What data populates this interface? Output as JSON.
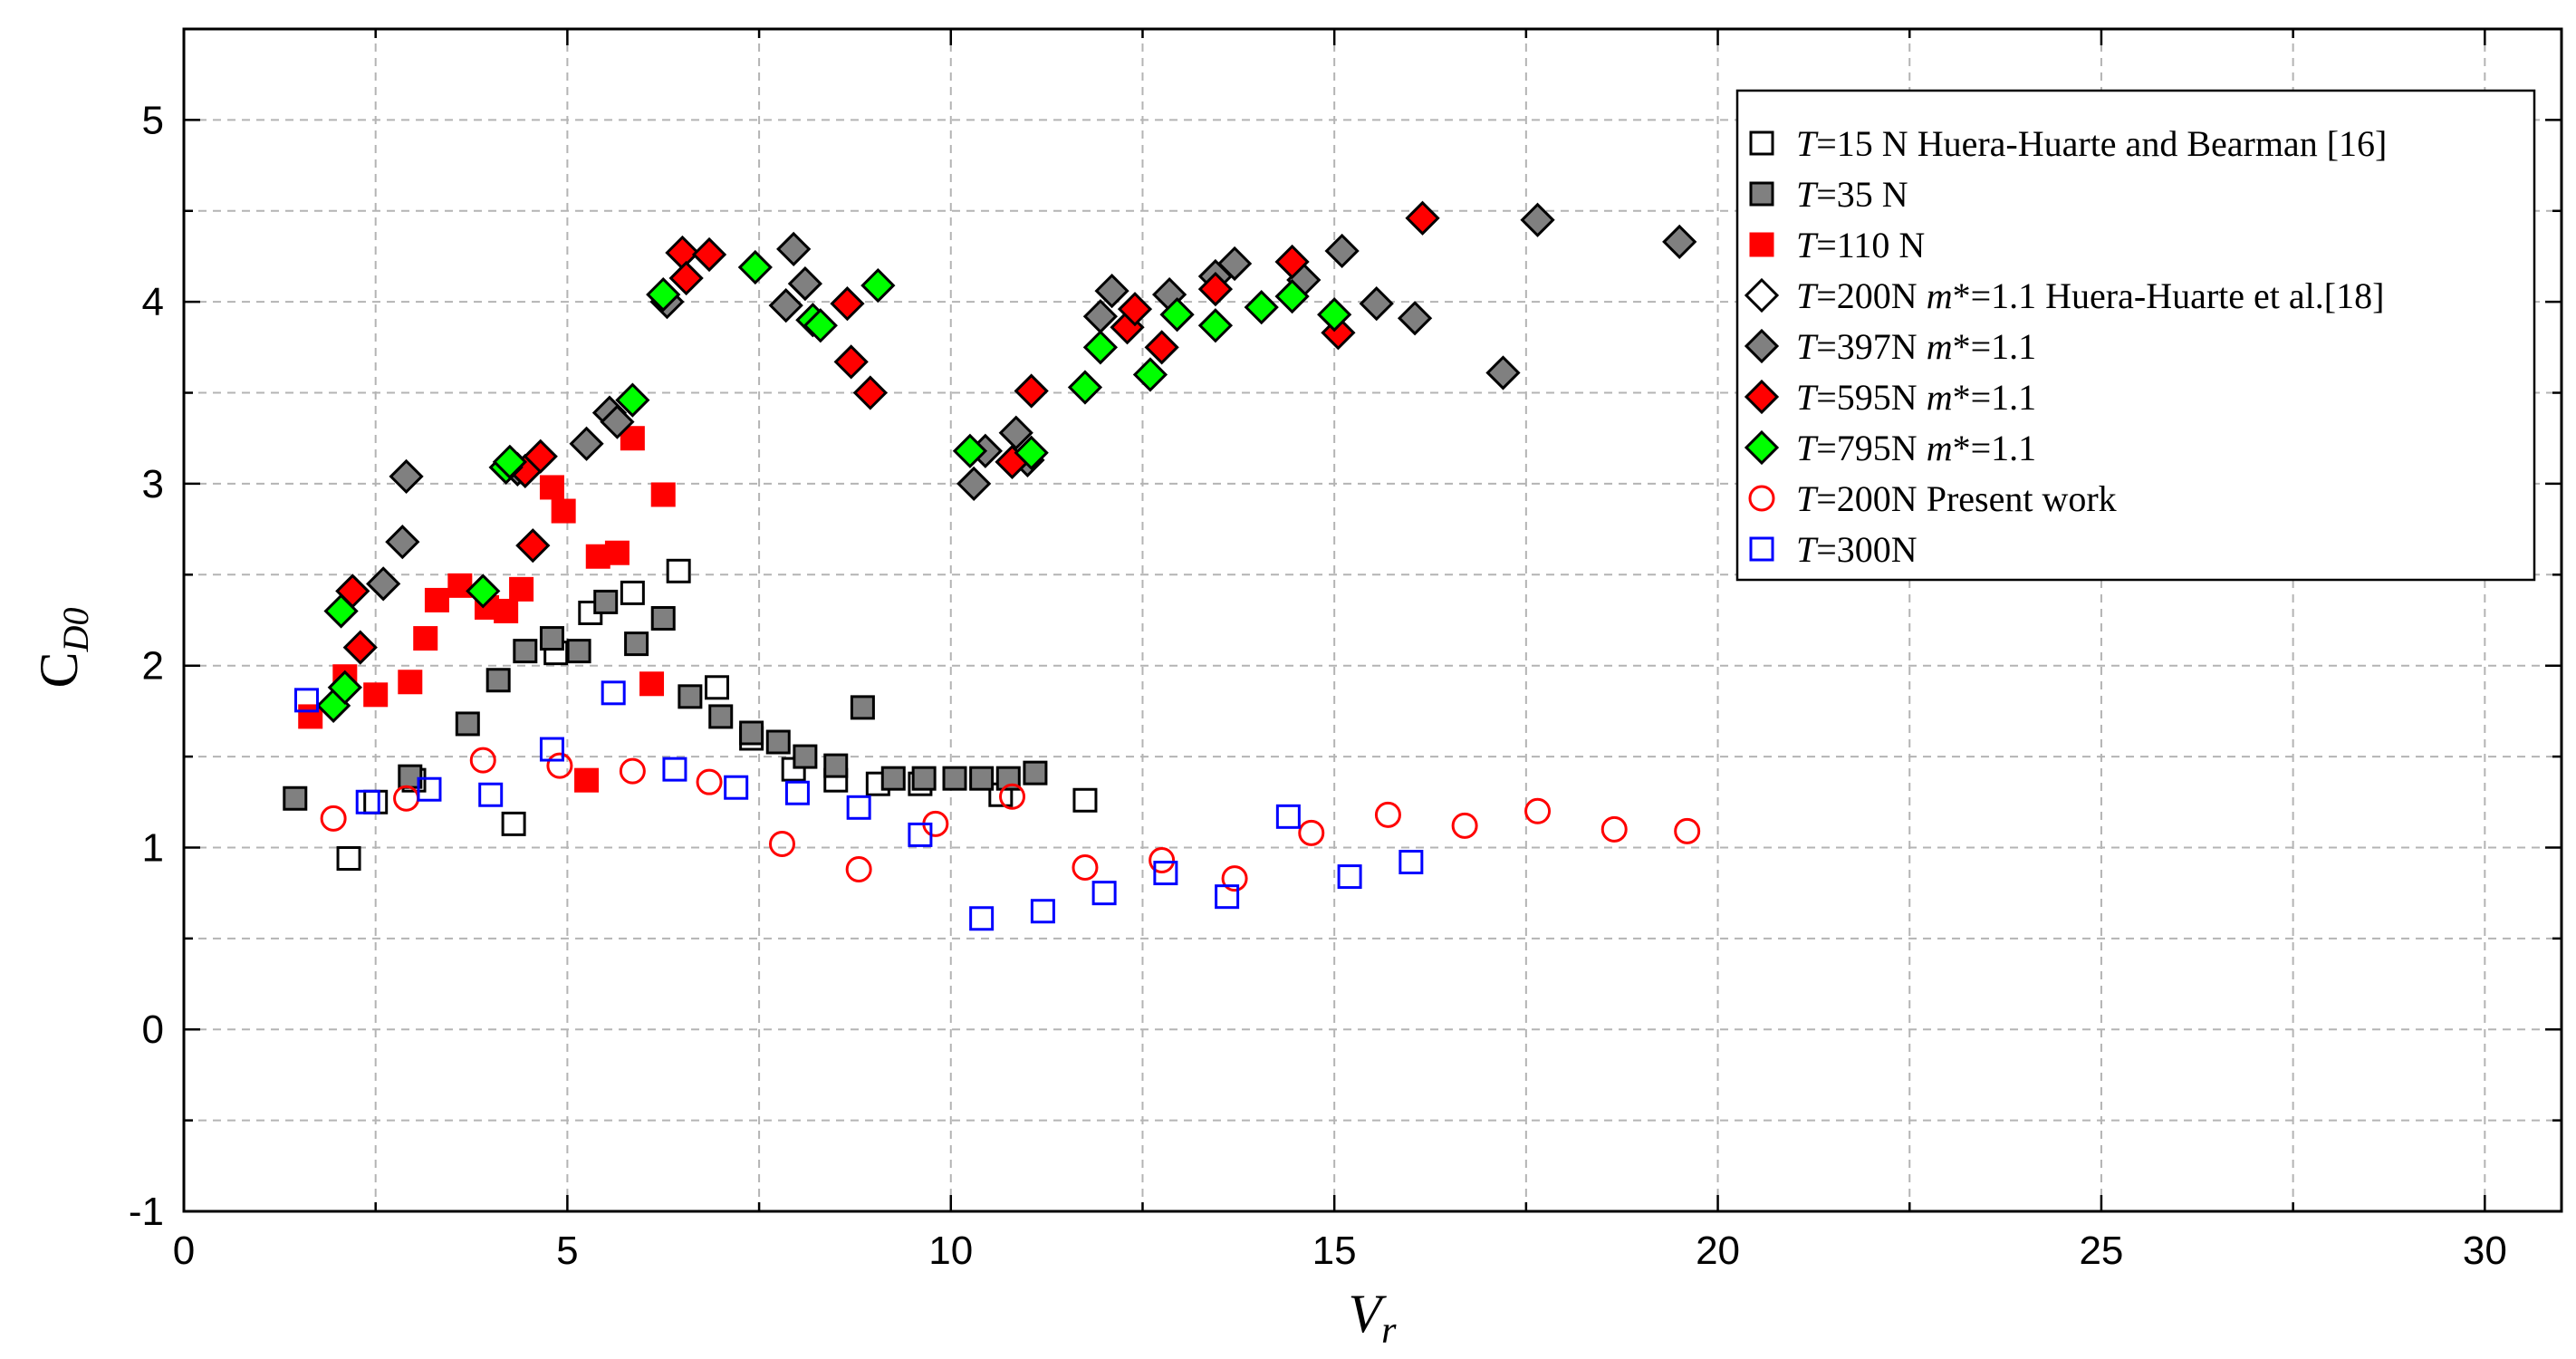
{
  "chart_data": {
    "type": "scatter",
    "title": "",
    "xlabel": "V_r",
    "xlabel_main": "V",
    "xlabel_sub": "r",
    "ylabel": "C_D0",
    "ylabel_main": "C",
    "ylabel_sub": "D0",
    "xlim": [
      0,
      31
    ],
    "ylim": [
      -1,
      5.5
    ],
    "xticks": [
      0,
      5,
      10,
      15,
      20,
      25,
      30
    ],
    "xtick_labels": [
      "0",
      "5",
      "10",
      "15",
      "20",
      "25",
      "30"
    ],
    "yticks": [
      -1,
      0,
      1,
      2,
      3,
      4,
      5
    ],
    "ytick_labels": [
      "-1",
      "0",
      "1",
      "2",
      "3",
      "4",
      "5"
    ],
    "grid": true,
    "legend_position": "top-right",
    "series": [
      {
        "name": "T=15 N Huera-Huarte and Bearman [16]",
        "legend_parts": [
          [
            "T",
            true
          ],
          [
            "=15 N Huera-Huarte and Bearman [16]",
            false
          ]
        ],
        "marker": "square",
        "fill": "#ffffff",
        "stroke": "#000000",
        "points": [
          [
            2.15,
            0.94
          ],
          [
            2.5,
            1.25
          ],
          [
            3.0,
            1.37
          ],
          [
            4.3,
            1.13
          ],
          [
            4.85,
            2.07
          ],
          [
            5.3,
            2.29
          ],
          [
            5.85,
            2.4
          ],
          [
            6.45,
            2.52
          ],
          [
            6.95,
            1.88
          ],
          [
            7.4,
            1.6
          ],
          [
            7.95,
            1.43
          ],
          [
            8.5,
            1.37
          ],
          [
            9.05,
            1.35
          ],
          [
            9.6,
            1.35
          ],
          [
            10.65,
            1.29
          ],
          [
            11.75,
            1.26
          ]
        ]
      },
      {
        "name": "T=35 N",
        "legend_parts": [
          [
            "T",
            true
          ],
          [
            "=35 N",
            false
          ]
        ],
        "marker": "square",
        "fill": "#808080",
        "stroke": "#000000",
        "points": [
          [
            1.45,
            1.27
          ],
          [
            2.95,
            1.39
          ],
          [
            3.7,
            1.68
          ],
          [
            4.1,
            1.92
          ],
          [
            4.45,
            2.08
          ],
          [
            4.8,
            2.15
          ],
          [
            5.15,
            2.08
          ],
          [
            5.5,
            2.35
          ],
          [
            5.9,
            2.12
          ],
          [
            6.25,
            2.26
          ],
          [
            6.6,
            1.83
          ],
          [
            7.0,
            1.72
          ],
          [
            7.4,
            1.63
          ],
          [
            7.75,
            1.58
          ],
          [
            8.1,
            1.5
          ],
          [
            8.5,
            1.45
          ],
          [
            8.85,
            1.77
          ],
          [
            9.25,
            1.38
          ],
          [
            9.65,
            1.38
          ],
          [
            10.05,
            1.38
          ],
          [
            10.4,
            1.38
          ],
          [
            10.75,
            1.38
          ],
          [
            11.1,
            1.41
          ]
        ]
      },
      {
        "name": "T=110 N",
        "legend_parts": [
          [
            "T",
            true
          ],
          [
            "=110 N",
            false
          ]
        ],
        "marker": "square",
        "fill": "#ff0000",
        "stroke": "#ff0000",
        "points": [
          [
            1.65,
            1.72
          ],
          [
            2.1,
            1.94
          ],
          [
            2.5,
            1.84
          ],
          [
            2.95,
            1.91
          ],
          [
            3.15,
            2.15
          ],
          [
            3.3,
            2.36
          ],
          [
            3.6,
            2.44
          ],
          [
            3.95,
            2.32
          ],
          [
            4.2,
            2.3
          ],
          [
            4.4,
            2.42
          ],
          [
            4.8,
            2.98
          ],
          [
            4.95,
            2.85
          ],
          [
            5.25,
            1.37
          ],
          [
            5.4,
            2.6
          ],
          [
            5.65,
            2.62
          ],
          [
            5.85,
            3.25
          ],
          [
            6.1,
            1.9
          ],
          [
            6.25,
            2.94
          ]
        ]
      },
      {
        "name": "T=200N m*=1.1 Huera-Huarte et al.[18]",
        "legend_parts": [
          [
            "T",
            true
          ],
          [
            "=200N ",
            false
          ],
          [
            "m",
            true
          ],
          [
            "*=1.1 Huera-Huarte et al.[18]",
            false
          ]
        ],
        "marker": "diamond",
        "fill": "#ffffff",
        "stroke": "#000000",
        "points": []
      },
      {
        "name": "T=397N m*=1.1",
        "legend_parts": [
          [
            "T",
            true
          ],
          [
            "=397N ",
            false
          ],
          [
            "m",
            true
          ],
          [
            "*=1.1",
            false
          ]
        ],
        "marker": "diamond",
        "fill": "#808080",
        "stroke": "#000000",
        "points": [
          [
            2.6,
            2.45
          ],
          [
            2.85,
            2.68
          ],
          [
            2.9,
            3.04
          ],
          [
            4.35,
            3.08
          ],
          [
            5.25,
            3.22
          ],
          [
            5.55,
            3.39
          ],
          [
            5.65,
            3.34
          ],
          [
            6.3,
            4.0
          ],
          [
            7.85,
            3.98
          ],
          [
            7.95,
            4.29
          ],
          [
            8.1,
            4.1
          ],
          [
            10.3,
            3.0
          ],
          [
            10.45,
            3.18
          ],
          [
            10.85,
            3.28
          ],
          [
            11.0,
            3.13
          ],
          [
            11.95,
            3.92
          ],
          [
            12.1,
            4.06
          ],
          [
            12.85,
            4.04
          ],
          [
            13.45,
            4.14
          ],
          [
            13.7,
            4.21
          ],
          [
            14.6,
            4.12
          ],
          [
            15.1,
            4.28
          ],
          [
            15.55,
            3.99
          ],
          [
            16.05,
            3.91
          ],
          [
            17.2,
            3.61
          ],
          [
            17.65,
            4.45
          ],
          [
            19.5,
            4.33
          ]
        ]
      },
      {
        "name": "T=595N m*=1.1",
        "legend_parts": [
          [
            "T",
            true
          ],
          [
            "=595N ",
            false
          ],
          [
            "m",
            true
          ],
          [
            "*=1.1",
            false
          ]
        ],
        "marker": "diamond",
        "fill": "#ff0000",
        "stroke": "#000000",
        "points": [
          [
            2.2,
            2.41
          ],
          [
            2.3,
            2.1
          ],
          [
            4.45,
            3.07
          ],
          [
            4.55,
            2.66
          ],
          [
            4.65,
            3.15
          ],
          [
            6.5,
            4.27
          ],
          [
            6.55,
            4.13
          ],
          [
            6.85,
            4.26
          ],
          [
            8.65,
            3.99
          ],
          [
            8.7,
            3.67
          ],
          [
            8.95,
            3.5
          ],
          [
            10.8,
            3.12
          ],
          [
            11.05,
            3.51
          ],
          [
            12.3,
            3.86
          ],
          [
            12.4,
            3.96
          ],
          [
            12.75,
            3.75
          ],
          [
            13.45,
            4.07
          ],
          [
            14.45,
            4.22
          ],
          [
            15.05,
            3.83
          ],
          [
            16.15,
            4.46
          ]
        ]
      },
      {
        "name": "T=795N m*=1.1",
        "legend_parts": [
          [
            "T",
            true
          ],
          [
            "=795N ",
            false
          ],
          [
            "m",
            true
          ],
          [
            "*=1.1",
            false
          ]
        ],
        "marker": "diamond",
        "fill": "#00ff00",
        "stroke": "#000000",
        "points": [
          [
            1.95,
            1.78
          ],
          [
            2.05,
            2.3
          ],
          [
            2.1,
            1.88
          ],
          [
            3.9,
            2.41
          ],
          [
            4.2,
            3.09
          ],
          [
            4.25,
            3.12
          ],
          [
            5.85,
            3.46
          ],
          [
            6.25,
            4.04
          ],
          [
            7.45,
            4.19
          ],
          [
            8.2,
            3.9
          ],
          [
            8.3,
            3.87
          ],
          [
            9.05,
            4.09
          ],
          [
            10.25,
            3.18
          ],
          [
            11.05,
            3.17
          ],
          [
            11.75,
            3.53
          ],
          [
            11.95,
            3.75
          ],
          [
            12.6,
            3.6
          ],
          [
            12.95,
            3.93
          ],
          [
            13.45,
            3.87
          ],
          [
            14.05,
            3.97
          ],
          [
            14.45,
            4.03
          ],
          [
            15.0,
            3.93
          ]
        ]
      },
      {
        "name": "T=200N Present work",
        "legend_parts": [
          [
            "T",
            true
          ],
          [
            "=200N Present work",
            false
          ]
        ],
        "marker": "circle",
        "fill": "none",
        "stroke": "#ff0000",
        "points": [
          [
            1.95,
            1.16
          ],
          [
            2.9,
            1.27
          ],
          [
            3.9,
            1.48
          ],
          [
            4.9,
            1.45
          ],
          [
            5.85,
            1.42
          ],
          [
            6.85,
            1.36
          ],
          [
            7.8,
            1.02
          ],
          [
            8.8,
            0.88
          ],
          [
            9.8,
            1.13
          ],
          [
            10.8,
            1.28
          ],
          [
            11.75,
            0.89
          ],
          [
            12.75,
            0.93
          ],
          [
            13.7,
            0.83
          ],
          [
            14.7,
            1.08
          ],
          [
            15.7,
            1.18
          ],
          [
            16.7,
            1.12
          ],
          [
            17.65,
            1.2
          ],
          [
            18.65,
            1.1
          ],
          [
            19.6,
            1.09
          ]
        ]
      },
      {
        "name": "T=300N",
        "legend_parts": [
          [
            "T",
            true
          ],
          [
            "=300N",
            false
          ]
        ],
        "marker": "square",
        "fill": "none",
        "stroke": "#0000ff",
        "points": [
          [
            1.6,
            1.81
          ],
          [
            2.4,
            1.25
          ],
          [
            3.2,
            1.32
          ],
          [
            4.0,
            1.29
          ],
          [
            4.8,
            1.54
          ],
          [
            5.6,
            1.85
          ],
          [
            6.4,
            1.43
          ],
          [
            7.2,
            1.33
          ],
          [
            8.0,
            1.3
          ],
          [
            8.8,
            1.22
          ],
          [
            9.6,
            1.07
          ],
          [
            10.4,
            0.61
          ],
          [
            11.2,
            0.65
          ],
          [
            12.0,
            0.75
          ],
          [
            12.8,
            0.86
          ],
          [
            13.6,
            0.73
          ],
          [
            14.4,
            1.17
          ],
          [
            15.2,
            0.84
          ],
          [
            16.0,
            0.92
          ]
        ]
      }
    ]
  }
}
